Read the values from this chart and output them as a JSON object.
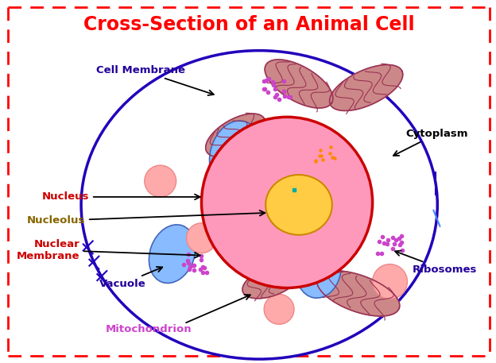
{
  "title": "Cross-Section of an Animal Cell",
  "title_color": "#FF0000",
  "title_fontsize": 17,
  "bg_color": "#FFFFFF",
  "cell_membrane_color": "#2200BB",
  "cytoplasm_color": "#FFFFFF",
  "nucleus_fill": "#FF99BB",
  "nucleus_border": "#CC0000",
  "nucleolus_fill": "#FFCC44",
  "nucleolus_border": "#CC8800",
  "mito_fill": "#CC8888",
  "mito_border": "#993355",
  "mito_inner": "#BB6677",
  "vacuole_fill": "#88BBFF",
  "vacuole_border": "#4466BB",
  "vesicle_fill": "#FFAAAA",
  "vesicle_border": "#EE8888",
  "ribosome_color": "#CC44CC",
  "orange_dot_color": "#FF8800",
  "labels": {
    "cell_membrane": "Cell Membrane",
    "cytoplasm": "Cytoplasm",
    "nucleus": "Nucleus",
    "nucleolus": "Nucleolus",
    "nuclear_membrane": "Nuclear\nMembrane",
    "vacuole": "Vacuole",
    "mitochondrion": "Mitochondrion",
    "ribosomes": "Ribosomes"
  },
  "label_colors": {
    "cell_membrane": "#220099",
    "cytoplasm": "#000000",
    "nucleus": "#CC0000",
    "nucleolus": "#886600",
    "nuclear_membrane": "#CC0000",
    "vacuole": "#220099",
    "mitochondrion": "#CC44CC",
    "ribosomes": "#220099"
  }
}
